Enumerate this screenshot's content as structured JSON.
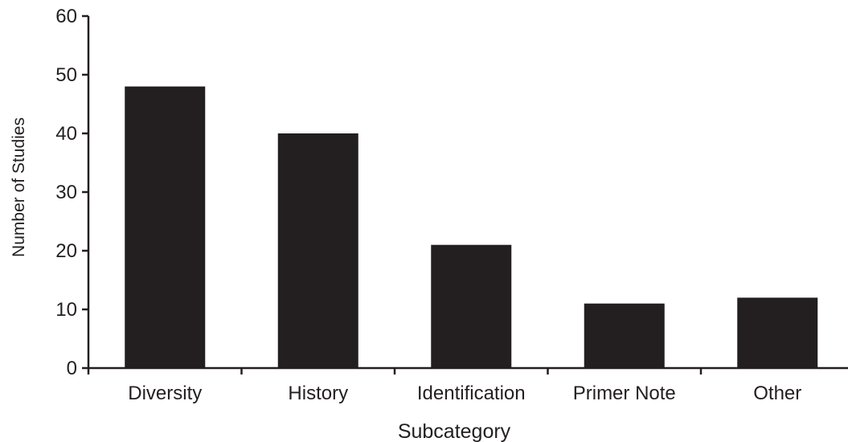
{
  "chart_data": {
    "type": "bar",
    "title": "",
    "xlabel": "Subcategory",
    "ylabel": "Number of Studies",
    "categories": [
      "Diversity",
      "History",
      "Identification",
      "Primer Note",
      "Other"
    ],
    "values": [
      48,
      40,
      21,
      11,
      12
    ],
    "ylim": [
      0,
      60
    ],
    "yticks": [
      "0",
      "10",
      "20",
      "30",
      "40",
      "50",
      "60"
    ],
    "grid": false,
    "legend": "none",
    "colors": {
      "bar": "#231f20",
      "axis": "#231f20",
      "text": "#231f20",
      "background": "#ffffff"
    }
  }
}
